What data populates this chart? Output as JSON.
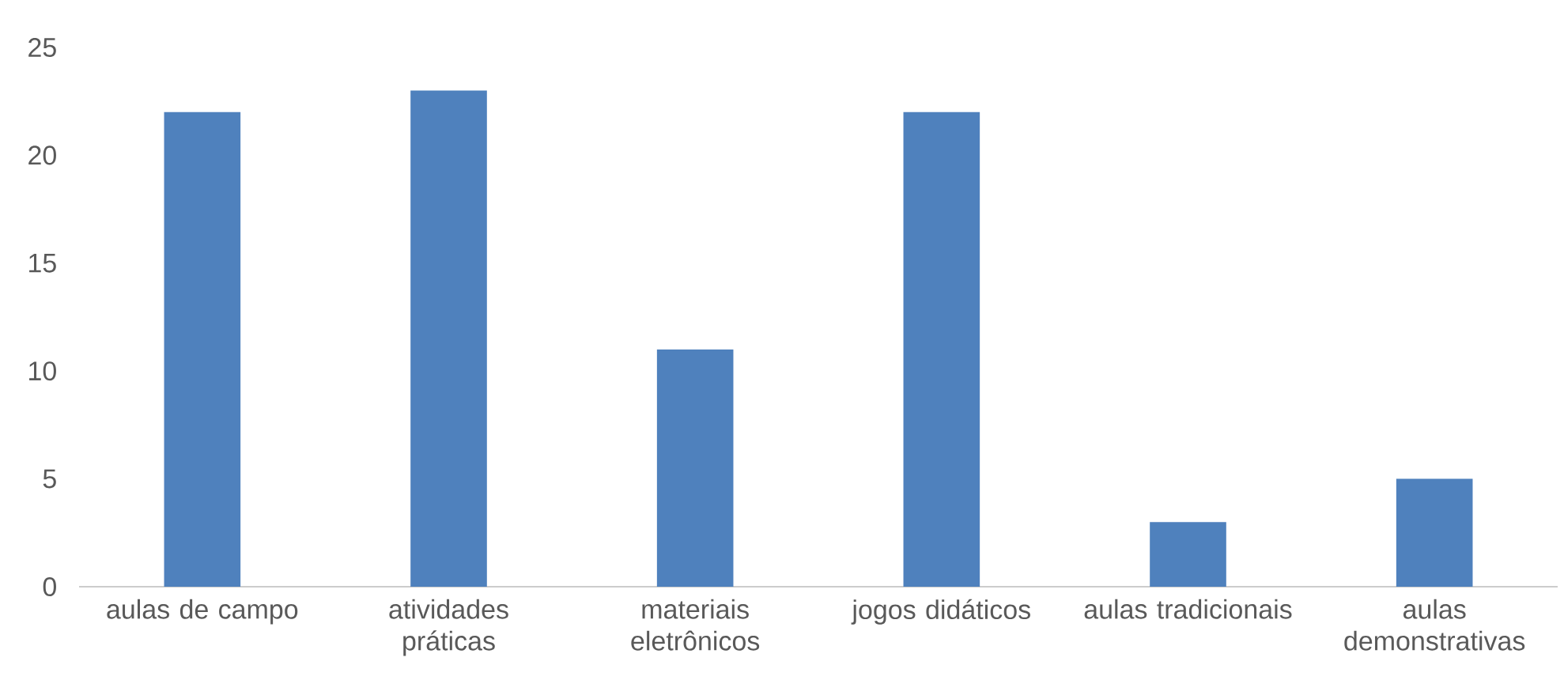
{
  "chart_data": {
    "type": "bar",
    "categories": [
      "aulas de campo",
      "atividades práticas",
      "materiais eletrônicos",
      "jogos didáticos",
      "aulas tradicionais",
      "aulas demonstrativas"
    ],
    "values": [
      22,
      23,
      11,
      22,
      3,
      5
    ],
    "color": "#4f81bd",
    "ylim": [
      0,
      25
    ],
    "yticks": [
      0,
      5,
      10,
      15,
      20,
      25
    ]
  }
}
